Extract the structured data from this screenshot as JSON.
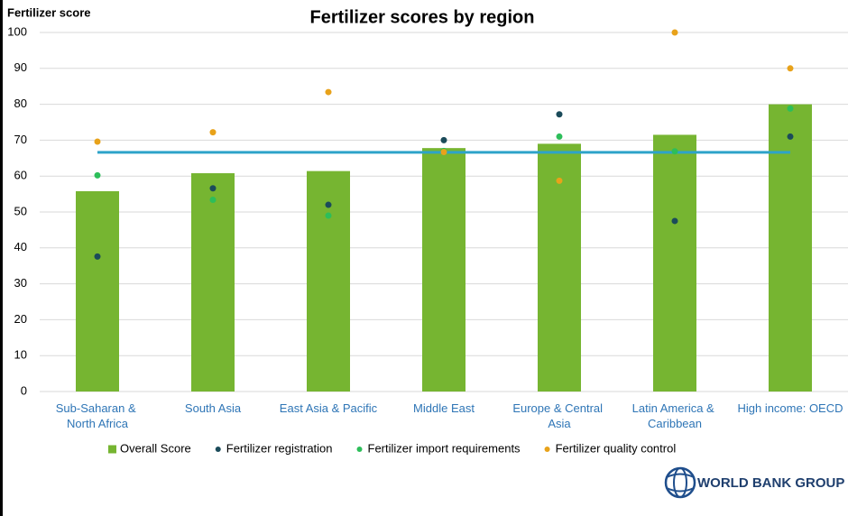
{
  "chart_data": {
    "type": "bar",
    "title": "Fertilizer scores by region",
    "y_label": "Fertilizer score",
    "categories": [
      "Sub-Saharan & North Africa",
      "South Asia",
      "East Asia & Pacific",
      "Middle East",
      "Europe & Central Asia",
      "Latin America & Caribbean",
      "High income: OECD"
    ],
    "series": [
      {
        "name": "Overall Score",
        "kind": "bar",
        "color": "#76b531",
        "values": [
          55.8,
          60.8,
          61.4,
          67.8,
          69,
          71.5,
          80
        ]
      },
      {
        "name": "Fertilizer registration",
        "kind": "dot",
        "color": "#1b4b5a",
        "values": [
          37.6,
          56.6,
          52,
          70,
          77.2,
          47.5,
          71
        ]
      },
      {
        "name": "Fertilizer import requirements",
        "kind": "dot",
        "color": "#2dbe5a",
        "values": [
          60.2,
          53.4,
          49,
          67,
          71,
          66.9,
          78.8
        ]
      },
      {
        "name": "Fertilizer quality control",
        "kind": "dot",
        "color": "#e8a21a",
        "values": [
          69.6,
          72.2,
          83.4,
          66.7,
          58.7,
          100,
          90
        ]
      }
    ],
    "average_line": {
      "value": 66.6,
      "color": "#2ea3c9"
    },
    "ylim": [
      0,
      100
    ],
    "yticks": [
      0,
      10,
      20,
      30,
      40,
      50,
      60,
      70,
      80,
      90,
      100
    ],
    "grid": true,
    "legend": "bottom",
    "logo": "WORLD BANK GROUP"
  }
}
